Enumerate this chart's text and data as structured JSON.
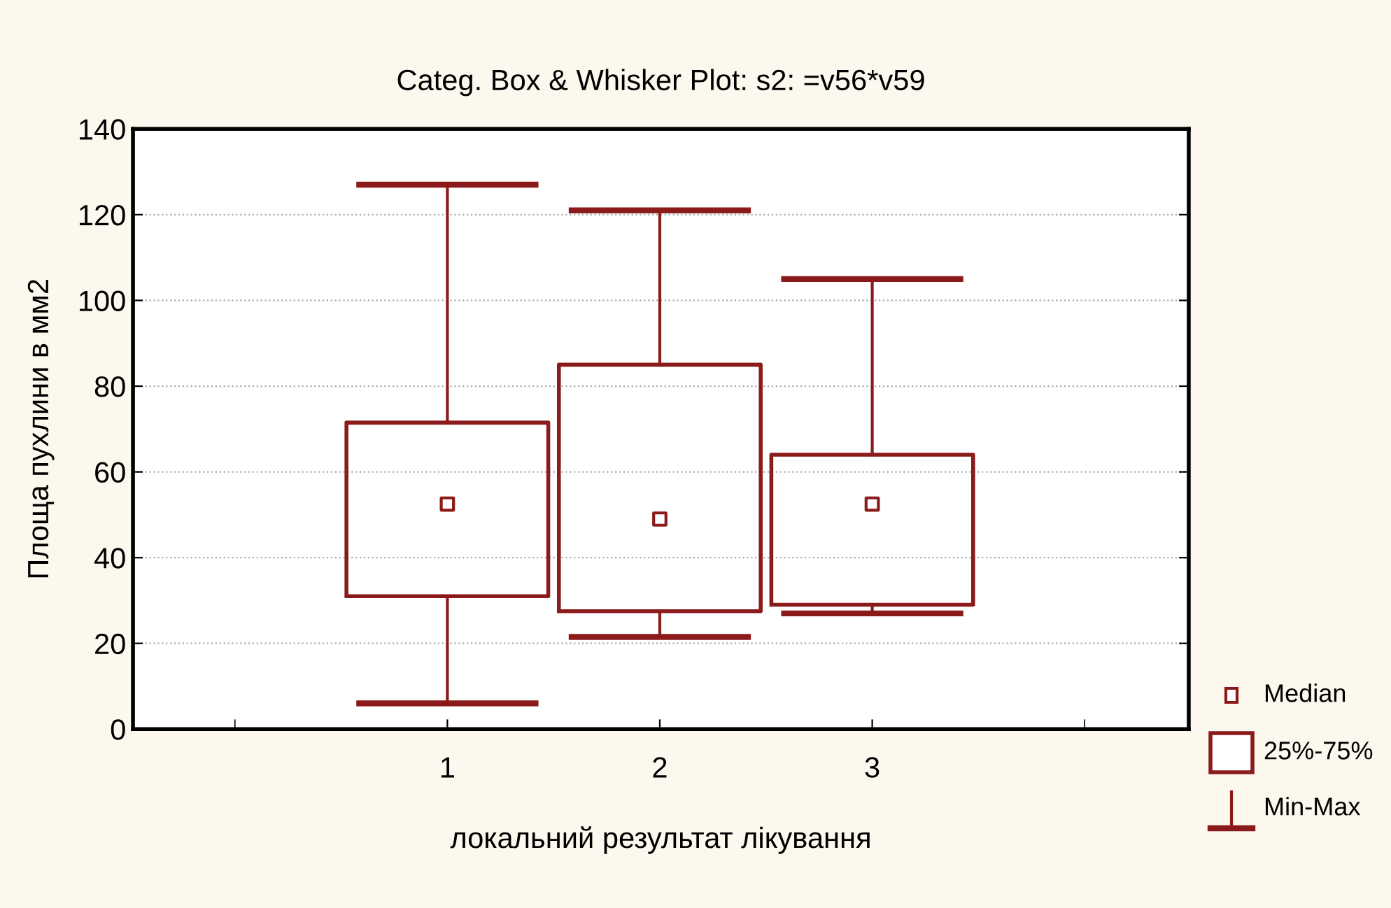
{
  "chart_data": {
    "type": "box",
    "title": "Categ. Box & Whisker Plot: s2: =v56*v59",
    "xlabel": "локальний результат лікування",
    "ylabel": "Площа пухлини в мм2",
    "categories": [
      "1",
      "2",
      "3"
    ],
    "series": [
      {
        "color": "#8b1a1a",
        "boxes": [
          {
            "low": 6,
            "q1": 31,
            "median": 52.5,
            "q3": 71.5,
            "high": 127
          },
          {
            "low": 21.5,
            "q1": 27.5,
            "median": 49,
            "q3": 85,
            "high": 121
          },
          {
            "low": 27,
            "q1": 29,
            "median": 52.5,
            "q3": 64,
            "high": 105
          }
        ]
      }
    ],
    "ylim": [
      0,
      140
    ],
    "yticks": [
      0,
      20,
      40,
      60,
      80,
      100,
      120,
      140
    ],
    "grid": "y",
    "annotations": [
      "Median",
      "25%-75%",
      "Min-Max"
    ]
  }
}
